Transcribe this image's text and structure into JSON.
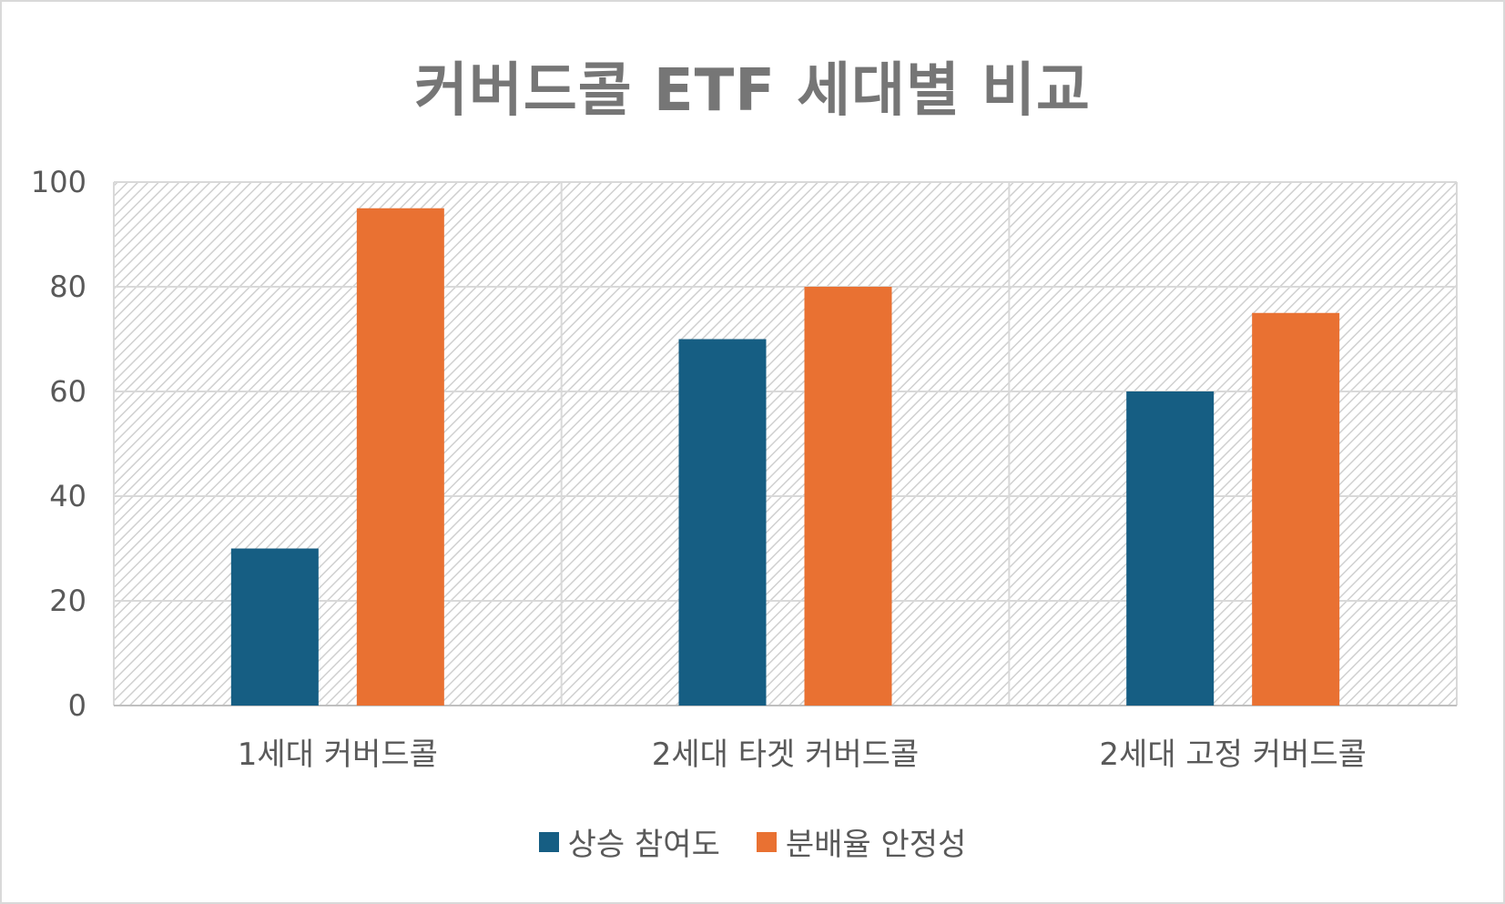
{
  "chart_data": {
    "type": "bar",
    "title": "커버드콜 ETF 세대별 비교",
    "categories": [
      "1세대 커버드콜",
      "2세대 타겟 커버드콜",
      "2세대 고정 커버드콜"
    ],
    "series": [
      {
        "name": "상승 참여도",
        "values": [
          30,
          70,
          60
        ],
        "color": "#165e83"
      },
      {
        "name": "분배율 안정성",
        "values": [
          95,
          80,
          75
        ],
        "color": "#e97132"
      }
    ],
    "yticks": [
      0,
      20,
      40,
      60,
      80,
      100
    ],
    "ylim": [
      0,
      100
    ],
    "xlabel": "",
    "ylabel": "",
    "grid": true,
    "legend_position": "bottom"
  }
}
